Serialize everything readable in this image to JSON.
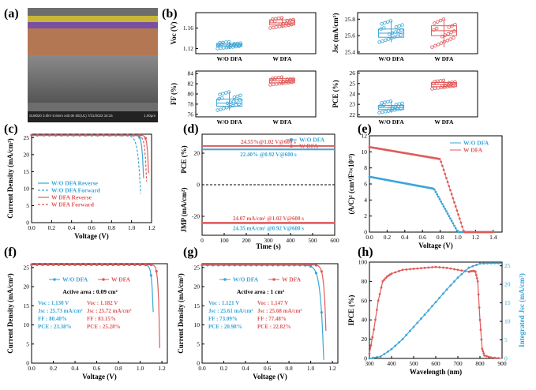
{
  "panel_labels": [
    "(a)",
    "(b)",
    "(c)",
    "(d)",
    "(e)",
    "(f)",
    "(g)",
    "(h)"
  ],
  "colors": {
    "wo": "#3aa6d8",
    "w": "#e05a5a"
  },
  "sem": {
    "caption": "SU8020 3.0kV 5.6mm x40.0k SE(UL) 7/21/2023 15:15",
    "scalebar": "1.00μm"
  },
  "chart_data": [
    {
      "id": "b1",
      "type": "box",
      "ylabel": "Voc (V)",
      "categories": [
        "W/O DFA",
        "W DFA"
      ],
      "yticks": [
        "1.12",
        "1.16"
      ],
      "ylim": [
        1.11,
        1.19
      ],
      "series": [
        {
          "name": "W/O DFA",
          "values": [
            1.12,
            1.124,
            1.127,
            1.13,
            1.133
          ]
        },
        {
          "name": "W DFA",
          "values": [
            1.16,
            1.166,
            1.17,
            1.176,
            1.18
          ]
        }
      ]
    },
    {
      "id": "b2",
      "type": "box",
      "ylabel": "Jsc (mA/cm²)",
      "categories": [
        "W/O DFA",
        "W DFA"
      ],
      "yticks": [
        "25.4",
        "25.6",
        "25.8"
      ],
      "ylim": [
        25.38,
        25.88
      ],
      "series": [
        {
          "name": "W/O DFA",
          "values": [
            25.52,
            25.58,
            25.63,
            25.68,
            25.78
          ]
        },
        {
          "name": "W DFA",
          "values": [
            25.46,
            25.6,
            25.66,
            25.72,
            25.8
          ]
        }
      ]
    },
    {
      "id": "b3",
      "type": "box",
      "ylabel": "FF (%)",
      "categories": [
        "W/O DFA",
        "W DFA"
      ],
      "yticks": [
        "76",
        "78",
        "80",
        "82",
        "84"
      ],
      "ylim": [
        75.5,
        84.5
      ],
      "series": [
        {
          "name": "W/O DFA",
          "values": [
            76.8,
            77.6,
            78.2,
            79,
            80.4
          ]
        },
        {
          "name": "W DFA",
          "values": [
            81.8,
            82.2,
            82.6,
            83,
            83.3
          ]
        }
      ]
    },
    {
      "id": "b4",
      "type": "box",
      "ylabel": "PCE (%)",
      "categories": [
        "W/O DFA",
        "W DFA"
      ],
      "yticks": [
        "22",
        "23",
        "24",
        "25",
        "26"
      ],
      "ylim": [
        21.8,
        26.2
      ],
      "series": [
        {
          "name": "W/O DFA",
          "values": [
            22.2,
            22.5,
            22.7,
            22.9,
            23.3
          ]
        },
        {
          "name": "W DFA",
          "values": [
            24.5,
            24.7,
            24.9,
            25.1,
            25.3
          ]
        }
      ]
    },
    {
      "id": "c",
      "type": "line",
      "xlabel": "Voltage (V)",
      "ylabel": "Current Density (mA/cm²)",
      "xlim": [
        0,
        1.2
      ],
      "ylim": [
        0,
        26
      ],
      "xticks": [
        "0.0",
        "0.2",
        "0.4",
        "0.6",
        "0.8",
        "1.0",
        "1.2"
      ],
      "yticks": [
        "0",
        "5",
        "10",
        "15",
        "20",
        "25"
      ],
      "series": [
        {
          "name": "W/O DFA Reverse",
          "voc": 1.13,
          "jsc": 25.7,
          "ff": 0.8,
          "dash": false,
          "c": "wo"
        },
        {
          "name": "W/O DFA Forward",
          "voc": 1.1,
          "jsc": 25.6,
          "ff": 0.74,
          "dash": true,
          "c": "wo"
        },
        {
          "name": "W DFA Reverse",
          "voc": 1.18,
          "jsc": 25.7,
          "ff": 0.83,
          "dash": false,
          "c": "w"
        },
        {
          "name": "W DFA Forward",
          "voc": 1.16,
          "jsc": 25.6,
          "ff": 0.79,
          "dash": true,
          "c": "w"
        }
      ]
    },
    {
      "id": "d",
      "type": "line",
      "xlabel": "Time (s)",
      "ylabel_top": "PCE (%)",
      "ylabel_bottom": "JMP (mA/cm²)",
      "xlim": [
        0,
        600
      ],
      "ylim": [
        -32,
        32
      ],
      "xticks": [
        "0",
        "100",
        "200",
        "300",
        "400",
        "500",
        "600"
      ],
      "yticks": [
        "20",
        "0",
        "-20"
      ],
      "series": [
        {
          "name": "W/O DFA",
          "pce": 22.4,
          "jmp": -24.35,
          "c": "wo"
        },
        {
          "name": "W DFA",
          "pce": 24.55,
          "jmp": -24.07,
          "c": "w"
        }
      ],
      "annotations": [
        "24.55%@1.02 V@600 s",
        "22.40% @0.92 V@600 s",
        "24.07 mA/cm² @1.02 V@600 s",
        "24.35 mA/cm² @0.92 V@600 s"
      ]
    },
    {
      "id": "e",
      "type": "line",
      "xlabel": "Voltage (V)",
      "ylabel": "(A/C)² (cm⁴/F²×10¹⁵)",
      "xlim": [
        0,
        1.5
      ],
      "ylim": [
        0,
        12
      ],
      "xticks": [
        "0.0",
        "0.2",
        "0.4",
        "0.6",
        "0.8",
        "1.0",
        "1.2",
        "1.4"
      ],
      "yticks": [
        "0",
        "2",
        "4",
        "6",
        "8",
        "10",
        "12"
      ],
      "series": [
        {
          "name": "W/O DFA",
          "start": 6.9,
          "vfb": 0.98,
          "c": "wo"
        },
        {
          "name": "W DFA",
          "start": 10.6,
          "vfb": 1.05,
          "c": "w"
        }
      ]
    },
    {
      "id": "f",
      "type": "line",
      "xlabel": "Voltage (V)",
      "ylabel": "Current Density (mA/cm²)",
      "xlim": [
        0,
        1.25
      ],
      "ylim": [
        0,
        26
      ],
      "xticks": [
        "0.0",
        "0.2",
        "0.4",
        "0.6",
        "0.8",
        "1.0",
        "1.2"
      ],
      "yticks": [
        "0",
        "5",
        "10",
        "15",
        "20",
        "25"
      ],
      "area": "Active area : 0.09 cm²",
      "series": [
        {
          "name": "W/O DFA",
          "voc": 1.13,
          "jsc": 25.73,
          "ff": 80.4,
          "pce": 23.38,
          "c": "wo"
        },
        {
          "name": "W DFA",
          "voc": 1.182,
          "jsc": 25.72,
          "ff": 83.15,
          "pce": 25.28,
          "c": "w"
        }
      ],
      "stats_wo": [
        "Voc : 1.130 V",
        "Jsc : 25.73 mA/cm²",
        "FF : 80.40%",
        "PCE : 23.38%"
      ],
      "stats_w": [
        "Voc : 1.182 V",
        "Jsc : 25.72 mA/cm²",
        "FF : 83.15%",
        "PCE : 25.28%"
      ]
    },
    {
      "id": "g",
      "type": "line",
      "xlabel": "Voltage (V)",
      "ylabel": "Current Density (mA/cm²)",
      "xlim": [
        0,
        1.25
      ],
      "ylim": [
        0,
        26
      ],
      "xticks": [
        "0.0",
        "0.2",
        "0.4",
        "0.6",
        "0.8",
        "1.0",
        "1.2"
      ],
      "yticks": [
        "0",
        "5",
        "10",
        "15",
        "20",
        "25"
      ],
      "area": "Active area : 1 cm²",
      "series": [
        {
          "name": "W/O DFA",
          "voc": 1.121,
          "jsc": 25.61,
          "ff": 73.09,
          "pce": 20.98,
          "c": "wo"
        },
        {
          "name": "W DFA",
          "voc": 1.147,
          "jsc": 25.68,
          "ff": 77.48,
          "pce": 22.82,
          "c": "w"
        }
      ],
      "stats_wo": [
        "Voc : 1.121 V",
        "Jsc : 25.61 mA/cm²",
        "FF : 73.09%",
        "PCE : 20.98%"
      ],
      "stats_w": [
        "Voc : 1.147 V",
        "Jsc : 25.68 mA/cm²",
        "FF : 77.48%",
        "PCE : 22.82%"
      ]
    },
    {
      "id": "h",
      "type": "line",
      "xlabel": "Wavelength (nm)",
      "ylabel": "IPCE (%)",
      "ylabel_right": "Integrated Jsc (mA/cm²)",
      "xlim": [
        300,
        900
      ],
      "ylim": [
        0,
        100
      ],
      "ylim_right": [
        0,
        26
      ],
      "xticks": [
        "300",
        "400",
        "500",
        "600",
        "700",
        "800",
        "900"
      ],
      "yticks": [
        "0",
        "20",
        "40",
        "60",
        "80",
        "100"
      ],
      "yticks_right": [
        "0",
        "5",
        "10",
        "15",
        "20",
        "25"
      ],
      "series": [
        {
          "name": "IPCE",
          "c": "w",
          "points": [
            [
              300,
              5
            ],
            [
              320,
              30
            ],
            [
              340,
              60
            ],
            [
              360,
              80
            ],
            [
              380,
              85
            ],
            [
              400,
              88
            ],
            [
              450,
              92
            ],
            [
              500,
              93
            ],
            [
              550,
              94
            ],
            [
              600,
              95
            ],
            [
              650,
              94
            ],
            [
              700,
              92
            ],
            [
              750,
              90
            ],
            [
              770,
              91
            ],
            [
              780,
              90
            ],
            [
              790,
              80
            ],
            [
              800,
              40
            ],
            [
              810,
              10
            ],
            [
              820,
              3
            ],
            [
              850,
              1
            ],
            [
              900,
              0
            ]
          ]
        },
        {
          "name": "Integrated Jsc",
          "c": "wo",
          "points": [
            [
              300,
              0
            ],
            [
              350,
              0.5
            ],
            [
              400,
              2.5
            ],
            [
              450,
              5.2
            ],
            [
              500,
              8.5
            ],
            [
              550,
              11.8
            ],
            [
              600,
              15.2
            ],
            [
              650,
              18.6
            ],
            [
              700,
              21.8
            ],
            [
              750,
              24.5
            ],
            [
              800,
              25.6
            ],
            [
              850,
              25.7
            ],
            [
              900,
              25.7
            ]
          ]
        }
      ]
    }
  ]
}
